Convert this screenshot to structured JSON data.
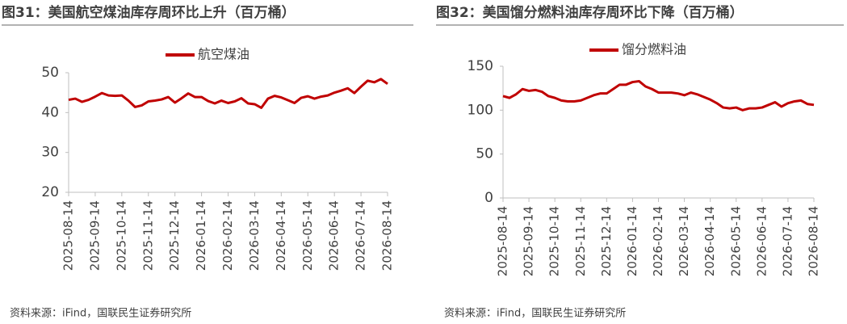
{
  "chart_data": [
    {
      "type": "line",
      "title": "图31：美国航空煤油库存周环比上升（百万桶）",
      "source": "资料来源：iFind，国联民生证券研究所",
      "categories": [
        "2025-08-14",
        null,
        null,
        null,
        "2025-09-14",
        null,
        null,
        null,
        "2025-10-14",
        null,
        null,
        null,
        "2025-11-14",
        null,
        null,
        null,
        "2025-12-14",
        null,
        null,
        null,
        "2026-01-14",
        null,
        null,
        null,
        "2026-02-14",
        null,
        null,
        null,
        "2026-03-14",
        null,
        null,
        null,
        "2026-04-14",
        null,
        null,
        null,
        "2026-05-14",
        null,
        null,
        null,
        "2026-06-14",
        null,
        null,
        null,
        "2026-07-14",
        null,
        null,
        null,
        "2026-08-14"
      ],
      "series": [
        {
          "name": "航空煤油",
          "color": "#c00000",
          "values": [
            43.2,
            43.5,
            42.7,
            43.2,
            44.0,
            44.9,
            44.3,
            44.2,
            44.3,
            43.0,
            41.4,
            41.8,
            42.8,
            43.0,
            43.3,
            43.9,
            42.5,
            43.6,
            44.8,
            43.9,
            43.9,
            42.9,
            42.3,
            43.0,
            42.4,
            42.8,
            43.6,
            42.3,
            42.1,
            41.2,
            43.5,
            44.2,
            43.8,
            43.1,
            42.4,
            43.7,
            44.1,
            43.5,
            44.0,
            44.3,
            45.0,
            45.5,
            46.1,
            44.9,
            46.5,
            48.0,
            47.6,
            48.4,
            47.2
          ]
        }
      ],
      "ylim": [
        20,
        50
      ],
      "yticks": [
        20,
        30,
        40,
        50
      ]
    },
    {
      "type": "line",
      "title": "图32：美国馏分燃料油库存周环比下降（百万桶）",
      "source": "资料来源：iFind，国联民生证券研究所",
      "categories": [
        "2025-08-14",
        null,
        null,
        null,
        "2025-09-14",
        null,
        null,
        null,
        "2025-10-14",
        null,
        null,
        null,
        "2025-11-14",
        null,
        null,
        null,
        "2025-12-14",
        null,
        null,
        null,
        "2026-01-14",
        null,
        null,
        null,
        "2026-02-14",
        null,
        null,
        null,
        "2026-03-14",
        null,
        null,
        null,
        "2026-04-14",
        null,
        null,
        null,
        "2026-05-14",
        null,
        null,
        null,
        "2026-06-14",
        null,
        null,
        null,
        "2026-07-14",
        null,
        null,
        null,
        "2026-08-14"
      ],
      "series": [
        {
          "name": "馏分燃料油",
          "color": "#c00000",
          "values": [
            116,
            114,
            118,
            124,
            122,
            123,
            121,
            116,
            114,
            111,
            110,
            110,
            111,
            114,
            117,
            119,
            119,
            124,
            129,
            129,
            132,
            133,
            127,
            124,
            120,
            120,
            120,
            119,
            117,
            120,
            118,
            115,
            112,
            108,
            103,
            102,
            103,
            100,
            102,
            102,
            103,
            106,
            109,
            104,
            108,
            110,
            111,
            107,
            106
          ]
        }
      ],
      "ylim": [
        0,
        150
      ],
      "yticks": [
        0,
        50,
        100,
        150
      ]
    }
  ]
}
